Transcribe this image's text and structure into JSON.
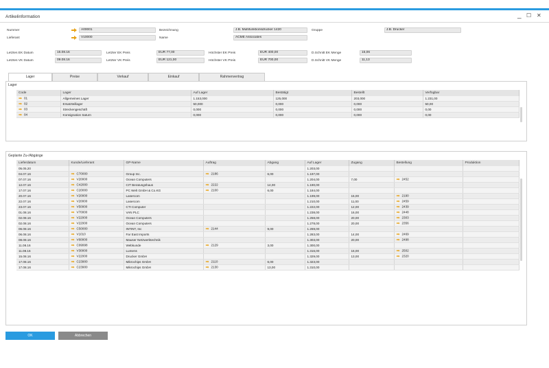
{
  "window": {
    "title": "Artikelinformation",
    "controls": [
      "_",
      "☐",
      "✕"
    ]
  },
  "header": {
    "nummer_label": "Nummer",
    "nummer_value": "A00001",
    "lieferant_label": "Lieferant",
    "lieferant_value": "V10000",
    "bezeichnung_label": "Bezeichnung",
    "bezeichnung_value": "J.B. Multifunktionsdrucker 1420",
    "name_label": "Name",
    "name_value": "ACME Associates",
    "gruppe_label": "Gruppe",
    "gruppe_value": "J.B. Drucker"
  },
  "prices": {
    "lek_datum_label": "Letztes EK Datum",
    "lek_datum": "15.08.16",
    "lvk_datum_label": "Letztes VK Datum",
    "lvk_datum": "09.08.16",
    "lek_preis_label": "Letzter EK Preis",
    "lek_preis": "EUR 77,00",
    "lvk_preis_label": "Letzter VK Preis",
    "lvk_preis": "EUR 121,00",
    "hek_preis_label": "Höchster EK Preis",
    "hek_preis": "EUR 400,00",
    "hvk_preis_label": "Höchster VK Preis",
    "hvk_preis": "EUR 700,00",
    "dek_menge_label": "D.Schnitt EK Menge",
    "dek_menge": "15,06",
    "dvk_menge_label": "D.Schnitt VK Menge",
    "dvk_menge": "11,13"
  },
  "tabs": [
    "Lager",
    "Preise",
    "Verkauf",
    "Einkauf",
    "Rahmenvertrag"
  ],
  "lager": {
    "title": "Lager",
    "columns": [
      "Code",
      "Lager",
      "Auf Lager",
      "Bestätigt",
      "Bestellt",
      "Verfügbar"
    ],
    "rows": [
      [
        "01",
        "Allgemeines Lager",
        "1.153,000",
        "125,000",
        "203,000",
        "1.231,00"
      ],
      [
        "02",
        "Ersatzteillager",
        "50,000",
        "0,000",
        "0,000",
        "50,00"
      ],
      [
        "03",
        "Streckengeschäft",
        "0,000",
        "0,000",
        "0,000",
        "0,00"
      ],
      [
        "04",
        "Konsignation Saturn",
        "0,000",
        "0,000",
        "0,000",
        "0,00"
      ]
    ]
  },
  "geplant": {
    "title": "Geplante Zu-/Abgänge",
    "columns": [
      "Lieferdatum",
      "Kunde/Lieferant",
      "GP-Name",
      "Auftrag",
      "Abgang",
      "Auf Lager",
      "Zugang",
      "Bestellung",
      "Produktion"
    ],
    "rows": [
      [
        "05.05.20",
        "",
        "",
        "",
        "",
        "1.203,00",
        "",
        "",
        ""
      ],
      [
        "04.07.16",
        "C70000",
        "Group Inc.",
        "2186",
        "6,00",
        "1.197,00",
        "",
        "",
        ""
      ],
      [
        "07.07.16",
        "V20000",
        "Ocean Computers",
        "",
        "",
        "1.204,00",
        "7,00",
        "2452",
        ""
      ],
      [
        "12.07.16",
        "C42000",
        "CIT Beratungshaus",
        "2222",
        "14,00",
        "1.190,00",
        "",
        "",
        ""
      ],
      [
        "17.07.16",
        "C20000",
        "PC Welt GmbH & Co.KG",
        "2100",
        "6,00",
        "1.184,00",
        "",
        "",
        ""
      ],
      [
        "20.07.16",
        "V20000",
        "Lasercom",
        "",
        "",
        "1.199,00",
        "15,00",
        "2190",
        ""
      ],
      [
        "22.07.16",
        "V20000",
        "Lasercom",
        "",
        "",
        "1.210,00",
        "11,00",
        "2459",
        ""
      ],
      [
        "23.07.16",
        "V50000",
        "CTI Computer",
        "",
        "",
        "1.222,00",
        "12,00",
        "2439",
        ""
      ],
      [
        "01.08.16",
        "V70000",
        "VAN PLC",
        "",
        "",
        "1.238,00",
        "16,00",
        "2448",
        ""
      ],
      [
        "02.08.16",
        "V22000",
        "Ocean Computers",
        "",
        "",
        "1.258,00",
        "20,00",
        "2303",
        ""
      ],
      [
        "02.08.16",
        "V22000",
        "Ocean Computers",
        "",
        "",
        "1.278,00",
        "20,00",
        "2356",
        ""
      ],
      [
        "06.08.16",
        "C50000",
        "INTINT, Inc",
        "2144",
        "9,00",
        "1.269,00",
        "",
        "",
        ""
      ],
      [
        "06.08.16",
        "V1010",
        "Far East Imports",
        "",
        "",
        "1.283,00",
        "14,00",
        "2469",
        ""
      ],
      [
        "08.08.16",
        "V60000",
        "Mauser Netzwerktechnik",
        "",
        "",
        "1.303,00",
        "20,00",
        "2498",
        ""
      ],
      [
        "11.08.16",
        "C99998",
        "Webkunde",
        "2129",
        "3,00",
        "1.300,00",
        "",
        "",
        ""
      ],
      [
        "11.08.16",
        "V30000",
        "Lumens",
        "",
        "",
        "1.316,00",
        "16,00",
        "2502",
        ""
      ],
      [
        "15.08.16",
        "V22000",
        "Drucker GmbH",
        "",
        "",
        "1.329,00",
        "13,00",
        "2320",
        ""
      ],
      [
        "17.08.16",
        "C23900",
        "Mikrochips GmbH",
        "2110",
        "6,00",
        "1.323,00",
        "",
        "",
        ""
      ],
      [
        "17.08.16",
        "C23900",
        "Mikrochips GmbH",
        "2130",
        "13,00",
        "1.310,00",
        "",
        "",
        ""
      ]
    ]
  },
  "buttons": {
    "ok": "OK",
    "cancel": "Abbrechen"
  },
  "colors": {
    "accent": "#2a9be0",
    "arrow": "#e8a317",
    "cancel": "#8a8a8a"
  }
}
